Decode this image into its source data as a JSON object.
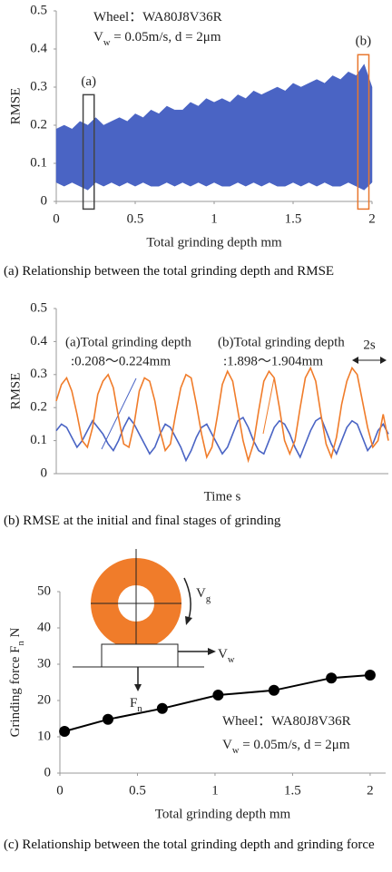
{
  "chart_data": [
    {
      "type": "band",
      "caption": "(a) Relationship between the total grinding depth and RMSE",
      "xlabel": "Total grinding depth  mm",
      "ylabel": "RMSE",
      "notes": [
        [
          "Wheel：WA80J8V36R"
        ],
        [
          "V",
          "w",
          " = 0.05m/s, d = 2μm"
        ]
      ],
      "color": "#4a64c4",
      "x": [
        0,
        0.05,
        0.1,
        0.15,
        0.2,
        0.25,
        0.3,
        0.35,
        0.4,
        0.45,
        0.5,
        0.55,
        0.6,
        0.65,
        0.7,
        0.75,
        0.8,
        0.85,
        0.9,
        0.95,
        1.0,
        1.05,
        1.1,
        1.15,
        1.2,
        1.25,
        1.3,
        1.35,
        1.4,
        1.45,
        1.5,
        1.55,
        1.6,
        1.65,
        1.7,
        1.75,
        1.8,
        1.85,
        1.9,
        1.95,
        2.0
      ],
      "upper": [
        0.19,
        0.2,
        0.19,
        0.21,
        0.2,
        0.22,
        0.2,
        0.21,
        0.22,
        0.21,
        0.23,
        0.22,
        0.24,
        0.23,
        0.25,
        0.24,
        0.24,
        0.26,
        0.25,
        0.27,
        0.26,
        0.27,
        0.26,
        0.28,
        0.27,
        0.29,
        0.28,
        0.29,
        0.3,
        0.29,
        0.31,
        0.3,
        0.31,
        0.32,
        0.31,
        0.33,
        0.32,
        0.34,
        0.33,
        0.36,
        0.3
      ],
      "lower": [
        0.05,
        0.04,
        0.05,
        0.04,
        0.03,
        0.05,
        0.04,
        0.05,
        0.04,
        0.05,
        0.04,
        0.05,
        0.04,
        0.04,
        0.05,
        0.04,
        0.05,
        0.04,
        0.05,
        0.04,
        0.05,
        0.04,
        0.04,
        0.05,
        0.04,
        0.05,
        0.04,
        0.05,
        0.04,
        0.04,
        0.05,
        0.04,
        0.05,
        0.04,
        0.05,
        0.04,
        0.04,
        0.05,
        0.04,
        0.03,
        0.05
      ],
      "highlights": [
        {
          "label": "(a)",
          "x": [
            0.17,
            0.24
          ],
          "y": [
            -0.02,
            0.28
          ],
          "color": "#444444"
        },
        {
          "label": "(b)",
          "x": [
            1.91,
            1.98
          ],
          "y": [
            -0.02,
            0.385
          ],
          "color": "#e8772e"
        }
      ],
      "xlim": [
        0,
        2
      ],
      "xticks": [
        0,
        0.5,
        1,
        1.5,
        2
      ],
      "ylim": [
        0,
        0.5
      ],
      "yticks": [
        0,
        0.1,
        0.2,
        0.3,
        0.4,
        0.5
      ]
    },
    {
      "type": "line",
      "caption": "(b) RMSE at the initial and final stages of grinding",
      "xlabel": "Time s",
      "ylabel": "RMSE",
      "scale_label": "2s",
      "series": [
        {
          "name": "(a)Total grinding depth",
          "range": ":0.208〜0.224mm",
          "color": "#4a64c4",
          "values": [
            0.13,
            0.15,
            0.14,
            0.11,
            0.08,
            0.1,
            0.13,
            0.16,
            0.14,
            0.12,
            0.09,
            0.07,
            0.1,
            0.14,
            0.17,
            0.15,
            0.12,
            0.09,
            0.06,
            0.08,
            0.12,
            0.15,
            0.14,
            0.11,
            0.08,
            0.04,
            0.07,
            0.11,
            0.14,
            0.15,
            0.12,
            0.09,
            0.06,
            0.08,
            0.12,
            0.16,
            0.17,
            0.14,
            0.1,
            0.07,
            0.06,
            0.1,
            0.14,
            0.16,
            0.15,
            0.12,
            0.08,
            0.05,
            0.09,
            0.13,
            0.16,
            0.17,
            0.13,
            0.09,
            0.06,
            0.1,
            0.14,
            0.16,
            0.15,
            0.11,
            0.07,
            0.09,
            0.13,
            0.15,
            0.12
          ]
        },
        {
          "name": "(b)Total grinding depth",
          "range": ":1.898〜1.904mm",
          "color": "#f07c2a",
          "values": [
            0.22,
            0.27,
            0.29,
            0.25,
            0.18,
            0.1,
            0.08,
            0.14,
            0.24,
            0.28,
            0.3,
            0.26,
            0.17,
            0.09,
            0.08,
            0.15,
            0.25,
            0.29,
            0.28,
            0.22,
            0.13,
            0.07,
            0.09,
            0.18,
            0.26,
            0.3,
            0.29,
            0.21,
            0.12,
            0.05,
            0.08,
            0.17,
            0.27,
            0.31,
            0.28,
            0.19,
            0.1,
            0.04,
            0.09,
            0.19,
            0.28,
            0.31,
            0.29,
            0.2,
            0.1,
            0.06,
            0.1,
            0.2,
            0.29,
            0.32,
            0.28,
            0.18,
            0.09,
            0.05,
            0.11,
            0.21,
            0.28,
            0.32,
            0.3,
            0.22,
            0.14,
            0.08,
            0.1,
            0.18,
            0.1
          ]
        }
      ],
      "ylim": [
        0,
        0.5
      ],
      "yticks": [
        0,
        0.1,
        0.2,
        0.3,
        0.4,
        0.5
      ]
    },
    {
      "type": "line",
      "caption": "(c) Relationship between the total grinding depth and grinding force",
      "xlabel": "Total grinding depth  mm",
      "ylabel": [
        "Grinding force  F",
        "n",
        "  N"
      ],
      "notes": [
        [
          "Wheel：WA80J8V36R"
        ],
        [
          "V",
          "w",
          " = 0.05m/s, d = 2μm"
        ]
      ],
      "diagram_labels": [
        [
          "V",
          "g"
        ],
        [
          "V",
          "w"
        ],
        [
          "F",
          "n"
        ]
      ],
      "color": "#000000",
      "markers": true,
      "x": [
        0.03,
        0.31,
        0.66,
        1.02,
        1.38,
        1.75,
        2.0
      ],
      "values": [
        11.5,
        14.8,
        17.8,
        21.5,
        22.8,
        26.2,
        27
      ],
      "xlim": [
        0,
        2.1
      ],
      "xticks": [
        0,
        0.5,
        1,
        1.5,
        2
      ],
      "ylim": [
        0,
        50
      ],
      "yticks": [
        0,
        10,
        20,
        30,
        40,
        50
      ]
    }
  ]
}
